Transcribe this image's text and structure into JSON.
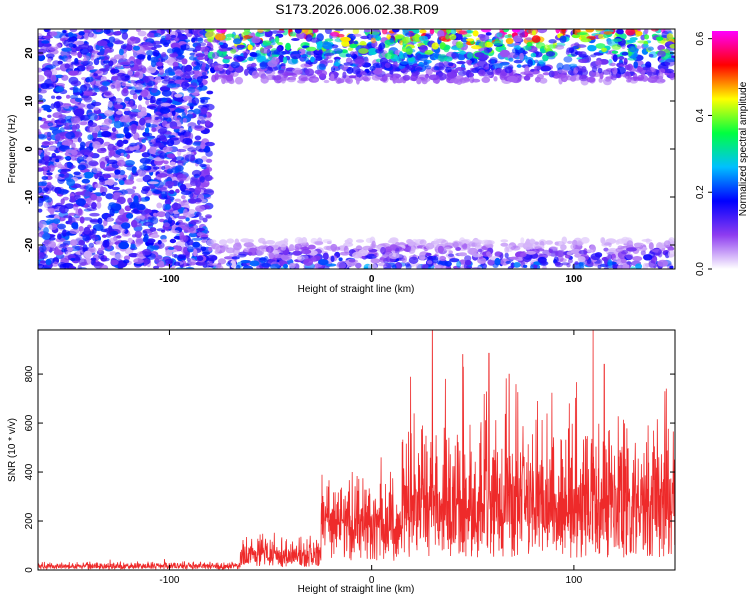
{
  "title": "S173.2026.006.02.38.R09",
  "chart_data": [
    {
      "type": "heatmap",
      "xlabel": "Height of straight line (km)",
      "ylabel": "Frequency (Hz)",
      "xlim": [
        -165,
        150
      ],
      "ylim": [
        -25,
        25
      ],
      "x_ticks": [
        -100,
        0,
        100
      ],
      "y_ticks": [
        -20,
        -10,
        0,
        10,
        20
      ],
      "colorbar": {
        "label": "Normalized spectral amplitude",
        "range": [
          0.0,
          0.62
        ],
        "ticks": [
          0.0,
          0.2,
          0.4,
          0.6
        ],
        "tick_labels": [
          "0.0",
          "0.2",
          "0.4",
          "0.6"
        ],
        "colors": [
          "#ffffff",
          "#8e3cf0",
          "#0000ff",
          "#00c0ff",
          "#00ff40",
          "#ffff00",
          "#ff0000",
          "#ff00ff"
        ]
      },
      "regions": [
        {
          "x": [
            -165,
            -80
          ],
          "freq": [
            -25,
            25
          ],
          "level": 0.12
        },
        {
          "x": [
            -80,
            150
          ],
          "freq": [
            14,
            25
          ],
          "level": 0.3
        },
        {
          "x": [
            -80,
            150
          ],
          "freq": [
            -25,
            -19
          ],
          "level": 0.12
        }
      ]
    },
    {
      "type": "line",
      "xlabel": "Height of straight line (km)",
      "ylabel": "SNR (10 * v/v)",
      "xlim": [
        -165,
        150
      ],
      "ylim": [
        0,
        980
      ],
      "x_ticks": [
        -100,
        0,
        100
      ],
      "y_ticks": [
        0,
        200,
        400,
        600,
        800
      ],
      "color": "#ee2a2a",
      "segments": [
        {
          "x": [
            -165,
            -65
          ],
          "base": 15,
          "spread": 25
        },
        {
          "x": [
            -65,
            -25
          ],
          "base": 60,
          "spread": 120
        },
        {
          "x": [
            -25,
            15
          ],
          "base": 180,
          "spread": 260
        },
        {
          "x": [
            15,
            150
          ],
          "base": 250,
          "spread": 520
        }
      ],
      "peaks": [
        {
          "x": 30,
          "y": 980
        },
        {
          "x": 45,
          "y": 880
        },
        {
          "x": 58,
          "y": 885
        },
        {
          "x": 68,
          "y": 800
        },
        {
          "x": 82,
          "y": 690
        },
        {
          "x": 115,
          "y": 840
        },
        {
          "x": 145,
          "y": 730
        }
      ]
    }
  ]
}
